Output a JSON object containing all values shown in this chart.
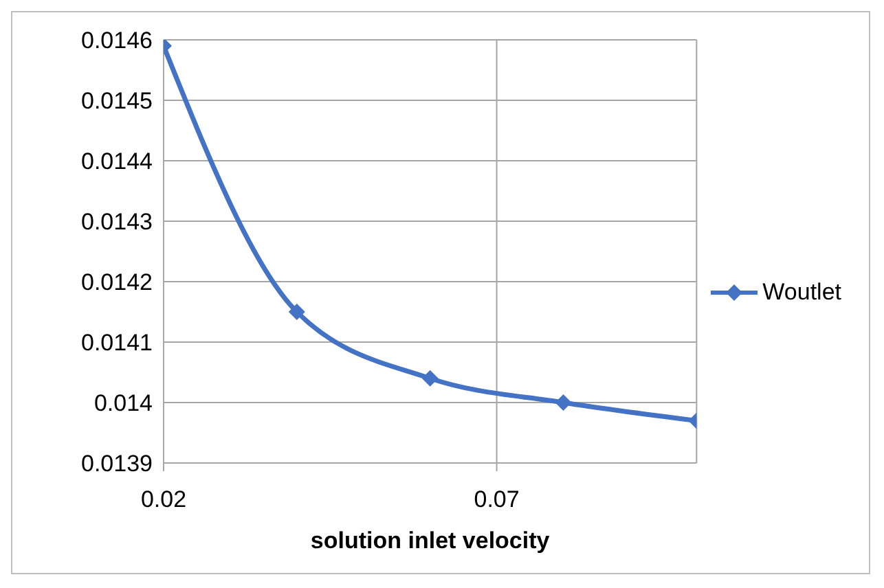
{
  "chart_data": {
    "type": "line",
    "xlabel": "solution inlet velocity",
    "x": [
      0.02,
      0.04,
      0.06,
      0.08,
      0.1
    ],
    "series": [
      {
        "name": "Woutlet",
        "color": "#4472c4",
        "values": [
          0.01459,
          0.01415,
          0.01404,
          0.014,
          0.01397
        ]
      }
    ],
    "xlim": [
      0.02,
      0.1
    ],
    "xticks": [
      0.02,
      0.07
    ],
    "ylim": [
      0.0139,
      0.0146
    ],
    "yticks": [
      0.0139,
      0.014,
      0.0141,
      0.0142,
      0.0143,
      0.0144,
      0.0145,
      0.0146
    ],
    "grid": true,
    "legend": "right",
    "marker": "diamond",
    "line_style": "solid"
  }
}
